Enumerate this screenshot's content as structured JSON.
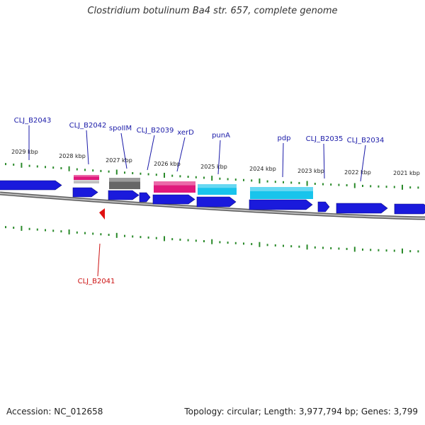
{
  "title": "Clostridium botulinum Ba4 str. 657, complete genome",
  "footer": {
    "accession": "Accession: NC_012658",
    "summary": "Topology: circular; Length: 3,977,794 bp; Genes: 3,799"
  },
  "colors": {
    "forward_gene": "#1a1adc",
    "pseudo_pink": "#e0187c",
    "pseudo_gray": "#666666",
    "pseudo_cyan": "#18c4ec",
    "highlight_marker": "#e01010",
    "tick_green": "#2a8a2a",
    "backbone": "#888888",
    "label_blue": "#1a1aa8",
    "label_red": "#cc1111"
  },
  "position_ticks": [
    "2029 kbp",
    "2028 kbp",
    "2027 kbp",
    "2026 kbp",
    "2025 kbp",
    "2024 kbp",
    "2023 kbp",
    "2022 kbp",
    "2021 kbp"
  ],
  "gene_labels": [
    "CLJ_B2043",
    "CLJ_B2042",
    "spoIIM",
    "CLJ_B2039",
    "xerD",
    "punA",
    "pdp",
    "CLJ_B2035",
    "CLJ_B2034",
    "CLJ_B2041"
  ]
}
